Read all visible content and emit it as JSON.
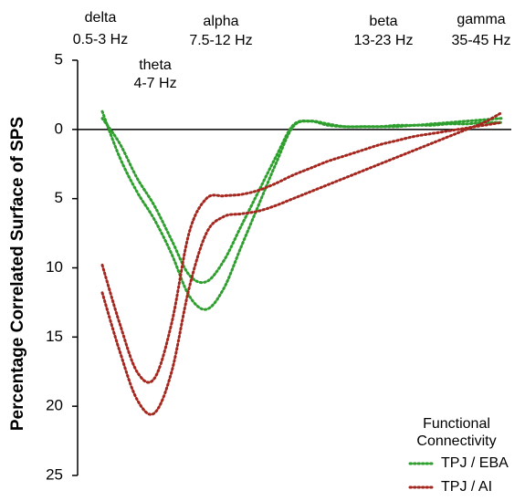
{
  "chart_data": {
    "type": "line",
    "y_label": "Percentage Correlated Surface of SPS",
    "ylim": [
      5,
      -25
    ],
    "yticks": [
      5,
      0,
      {
        "value": -5,
        "label": "5"
      },
      {
        "value": -10,
        "label": "10"
      },
      {
        "value": -15,
        "label": "15"
      },
      {
        "value": -20,
        "label": "20"
      },
      {
        "value": -25,
        "label": "25"
      }
    ],
    "annotations": [
      {
        "name": "delta",
        "range": "0.5-3 Hz"
      },
      {
        "name": "theta",
        "range": "4-7 Hz"
      },
      {
        "name": "alpha",
        "range": "7.5-12 Hz"
      },
      {
        "name": "beta",
        "range": "13-23 Hz"
      },
      {
        "name": "gamma",
        "range": "35-45 Hz"
      }
    ],
    "legend_title": [
      "Functional",
      "Connectivity"
    ],
    "series": [
      {
        "name": "TPJ / EBA",
        "color": "#2e9e2e",
        "values": [
          1.3,
          -2,
          -4.5,
          -6.5,
          -9,
          -12,
          -13,
          -11.5,
          -8.5,
          -5.5,
          -2.5,
          0.2,
          0.6,
          0.4,
          0.2,
          0.2,
          0.2,
          0.3,
          0.3,
          0.4,
          0.5,
          0.6,
          0.7,
          0.8
        ]
      },
      {
        "color": "#2e9e2e",
        "values": [
          0.8,
          -1,
          -3.5,
          -5.5,
          -8,
          -10.5,
          -11,
          -9.5,
          -7,
          -4.5,
          -2,
          0.3,
          0.6,
          0.3,
          0.2,
          0.2,
          0.2,
          0.2,
          0.3,
          0.3,
          0.4,
          0.4,
          0.5,
          0.5
        ]
      },
      {
        "name": "TPJ / AI",
        "color": "#a3271e",
        "values": [
          -11.8,
          -16,
          -19.5,
          -20.5,
          -17.5,
          -11.5,
          -7.5,
          -6.3,
          -6.1,
          -5.9,
          -5.5,
          -5,
          -4.5,
          -4,
          -3.5,
          -3,
          -2.5,
          -2,
          -1.5,
          -1,
          -0.5,
          0,
          0.5,
          1.2
        ]
      },
      {
        "color": "#a3271e",
        "values": [
          -9.8,
          -14,
          -17.5,
          -18,
          -14,
          -7.5,
          -5,
          -4.8,
          -4.7,
          -4.4,
          -3.9,
          -3.3,
          -2.8,
          -2.3,
          -1.9,
          -1.5,
          -1.1,
          -0.8,
          -0.5,
          -0.3,
          -0.1,
          0.1,
          0.3,
          0.5
        ]
      }
    ]
  }
}
